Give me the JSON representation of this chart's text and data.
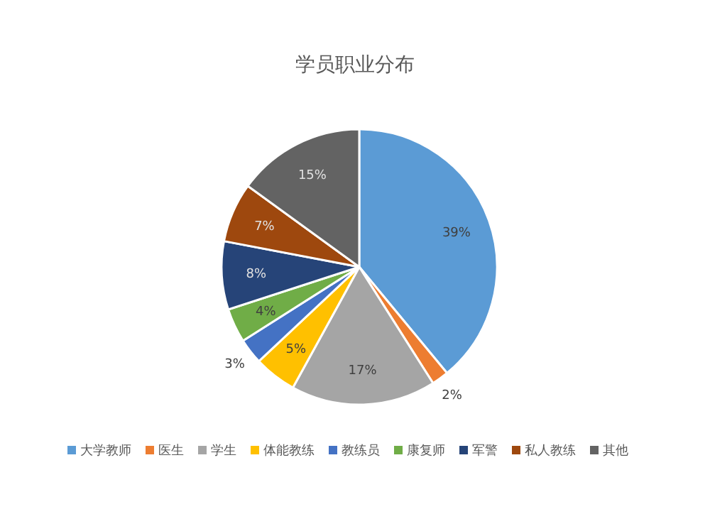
{
  "chart_data": {
    "type": "pie",
    "title": "学员职业分布",
    "categories": [
      "大学教师",
      "医生",
      "学生",
      "体能教练",
      "教练员",
      "康复师",
      "军警",
      "私人教练",
      "其他"
    ],
    "values": [
      39,
      2,
      17,
      5,
      3,
      4,
      8,
      7,
      15
    ],
    "colors": [
      "#5b9bd5",
      "#ed7d31",
      "#a5a5a5",
      "#ffc000",
      "#4472c4",
      "#70ad47",
      "#264478",
      "#9e480e",
      "#636363"
    ],
    "value_labels": [
      "39%",
      "2%",
      "17%",
      "5%",
      "3%",
      "4%",
      "8%",
      "7%",
      "15%"
    ],
    "legend": "bottom"
  }
}
